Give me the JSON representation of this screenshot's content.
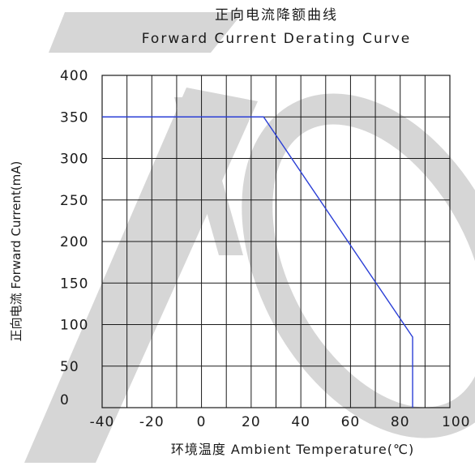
{
  "chart_data": {
    "type": "line",
    "title": "正向电流降额曲线",
    "subtitle": "Forward Current Derating Curve",
    "xlabel": "环境温度  Ambient Temperature(℃)",
    "ylabel": "正向电流 Forward Current(mA)",
    "xlim": [
      -40,
      100
    ],
    "ylim": [
      0,
      400
    ],
    "x_ticks": [
      -40,
      -20,
      0,
      20,
      40,
      60,
      80,
      100
    ],
    "y_ticks": [
      0,
      50,
      100,
      150,
      200,
      250,
      300,
      350,
      400
    ],
    "x_gridlines": [
      -40,
      -30,
      -20,
      -10,
      0,
      10,
      20,
      30,
      40,
      50,
      60,
      70,
      80,
      90,
      100
    ],
    "grid": true,
    "legend": "none",
    "series": [
      {
        "x": [
          -40,
          25,
          85,
          85
        ],
        "y": [
          350,
          350,
          85,
          0
        ],
        "color": "#2b3fd6"
      }
    ],
    "watermark_color": "#d6d6d6"
  }
}
